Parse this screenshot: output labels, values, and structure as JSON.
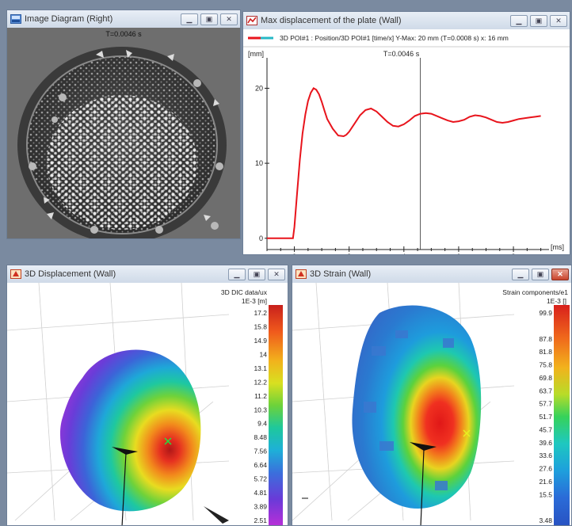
{
  "windows": {
    "image_diagram": {
      "title": "Image Diagram (Right)",
      "timestamp": "T=0.0046 s"
    },
    "max_displacement": {
      "title": "Max displacement of the plate (Wall)",
      "legend": "3D POI#1 : Position/3D POI#1 [time/x] Y-Max: 20 mm (T=0.0008 s) x: 16 mm",
      "y_unit": "[mm]",
      "x_unit": "[ms]",
      "cursor_label": "T=0.0046 s",
      "series_color": "#e8141c",
      "legend_color_2": "#26b8c6"
    },
    "displacement": {
      "title": "3D Displacement (Wall)",
      "scale_title_1": "3D DIC data/ux",
      "scale_title_2": "1E-3 [m]",
      "scale_values": [
        "17.2",
        "15.8",
        "14.9",
        "14",
        "13.1",
        "12.2",
        "11.2",
        "10.3",
        "9.4",
        "8.48",
        "7.56",
        "6.64",
        "5.72",
        "4.81",
        "3.89",
        "2.51"
      ]
    },
    "strain": {
      "title": "3D Strain (Wall)",
      "scale_title_1": "Strain components/e1",
      "scale_title_2": "1E-3 []",
      "scale_values": [
        "99.9",
        "",
        "87.8",
        "81.8",
        "75.8",
        "69.8",
        "63.7",
        "57.7",
        "51.7",
        "45.7",
        "39.6",
        "33.6",
        "27.6",
        "21.6",
        "15.5",
        "",
        "3.48"
      ]
    }
  },
  "chart_data": {
    "type": "line",
    "xlabel": "[ms]",
    "ylabel": "[mm]",
    "xlim": [
      -1,
      9.3
    ],
    "ylim": [
      -1.5,
      23
    ],
    "xticks": [
      0,
      2,
      4,
      6,
      8
    ],
    "yticks": [
      0,
      10,
      20
    ],
    "cursor_x": 4.6,
    "series": [
      {
        "x": [
          -1,
          -0.05,
          0,
          0.1,
          0.2,
          0.3,
          0.4,
          0.5,
          0.6,
          0.7,
          0.8,
          0.9,
          1.0,
          1.1,
          1.2,
          1.4,
          1.6,
          1.8,
          1.9,
          2.0,
          2.2,
          2.4,
          2.6,
          2.8,
          2.9,
          3.0,
          3.2,
          3.4,
          3.6,
          3.8,
          4.0,
          4.2,
          4.4,
          4.6,
          4.8,
          5.0,
          5.2,
          5.4,
          5.6,
          5.8,
          6.0,
          6.2,
          6.4,
          6.6,
          6.8,
          7.0,
          7.2,
          7.4,
          7.6,
          7.8,
          8.0,
          8.2,
          8.4,
          8.6,
          8.8,
          9.0
        ],
        "y": [
          0,
          0,
          1.5,
          6,
          10.5,
          14,
          16.5,
          18.3,
          19.4,
          20,
          19.8,
          19.2,
          18.2,
          17,
          15.9,
          14.6,
          13.7,
          13.6,
          13.8,
          14.2,
          15.3,
          16.4,
          17.1,
          17.3,
          17.1,
          16.9,
          16.2,
          15.5,
          15.0,
          14.9,
          15.2,
          15.7,
          16.3,
          16.6,
          16.7,
          16.6,
          16.3,
          16.0,
          15.7,
          15.5,
          15.6,
          15.8,
          16.2,
          16.4,
          16.3,
          16.1,
          15.8,
          15.5,
          15.4,
          15.5,
          15.7,
          15.9,
          16.0,
          16.1,
          16.2,
          16.3
        ]
      }
    ]
  }
}
